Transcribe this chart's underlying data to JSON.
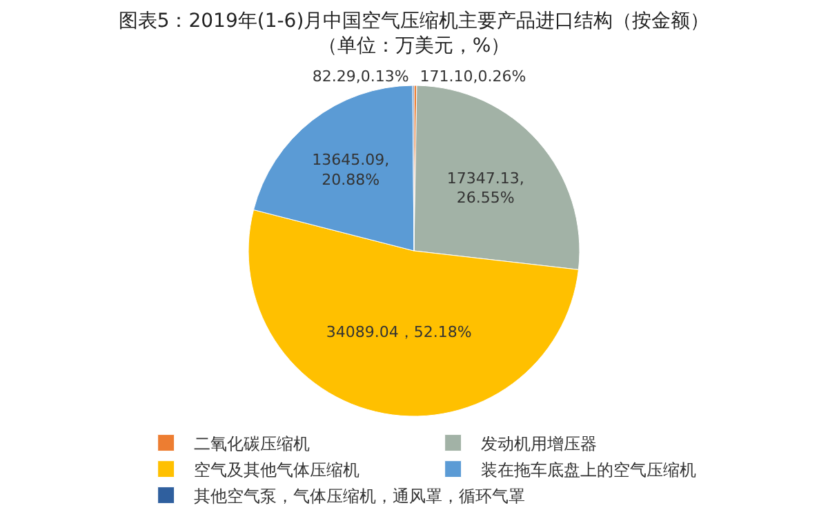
{
  "chart_data": {
    "type": "pie",
    "title": "图表5：2019年(1-6)月中国空气压缩机主要产品进口结构（按金额）",
    "subtitle": "（单位：万美元，%）",
    "categories": [
      "二氧化碳压缩机",
      "发动机用增压器",
      "空气及其他气体压缩机",
      "装在拖车底盘上的空气压缩机",
      "其他空气泵，气体压缩机，通风罩，循环气罩"
    ],
    "values": [
      171.1,
      17347.13,
      34089.04,
      13645.09,
      82.29
    ],
    "colors": [
      "#ed7d31",
      "#a2b2a6",
      "#ffc000",
      "#5b9bd5",
      "#2f5f9e"
    ],
    "value_labels": [
      "171.10,0.26%",
      "17347.13,\n26.55%",
      "34089.04，52.18%",
      "13645.09,\n20.88%",
      "82.29,0.13%"
    ],
    "legend": "bottom"
  }
}
